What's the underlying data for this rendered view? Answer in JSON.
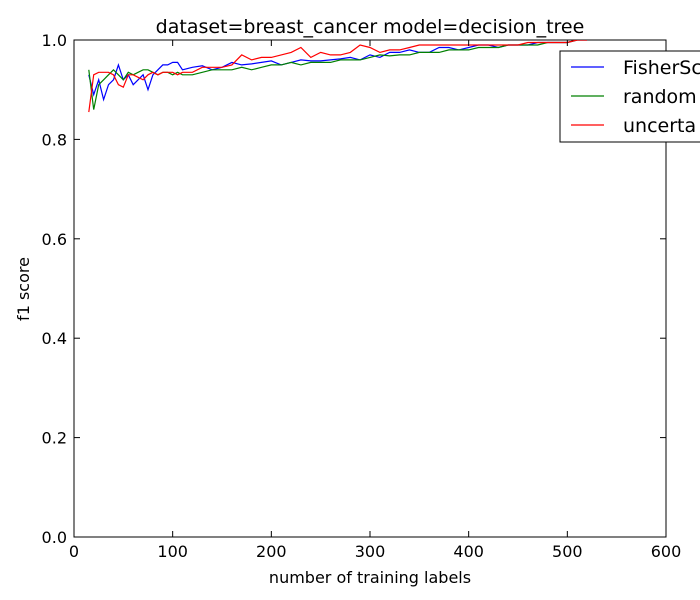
{
  "chart_data": {
    "type": "line",
    "title": "dataset=breast_cancer model=decision_tree",
    "xlabel": "number of training labels",
    "ylabel": "f1 score",
    "xlim": [
      0,
      600
    ],
    "ylim": [
      0.0,
      1.0
    ],
    "xticks": [
      "0",
      "100",
      "200",
      "300",
      "400",
      "500",
      "600"
    ],
    "yticks": [
      "0.0",
      "0.2",
      "0.4",
      "0.6",
      "0.8",
      "1.0"
    ],
    "grid": false,
    "legend_position": "top-right",
    "legend_labels": [
      "FisherSc",
      "random",
      "uncerta"
    ],
    "series": [
      {
        "name": "FisherSc",
        "color": "#0000ff",
        "x": [
          15,
          20,
          25,
          30,
          35,
          40,
          45,
          50,
          55,
          60,
          65,
          70,
          75,
          80,
          85,
          90,
          95,
          100,
          105,
          110,
          120,
          130,
          140,
          150,
          160,
          170,
          180,
          190,
          200,
          210,
          220,
          230,
          240,
          250,
          260,
          270,
          280,
          290,
          300,
          310,
          320,
          330,
          340,
          350,
          360,
          370,
          380,
          390,
          400,
          410,
          420,
          430,
          440,
          450,
          460,
          470,
          480,
          490,
          500,
          510,
          520
        ],
        "y": [
          0.93,
          0.89,
          0.92,
          0.88,
          0.91,
          0.92,
          0.95,
          0.92,
          0.93,
          0.91,
          0.92,
          0.93,
          0.9,
          0.93,
          0.94,
          0.95,
          0.95,
          0.955,
          0.955,
          0.94,
          0.945,
          0.948,
          0.94,
          0.945,
          0.955,
          0.95,
          0.952,
          0.955,
          0.958,
          0.95,
          0.955,
          0.96,
          0.958,
          0.958,
          0.96,
          0.962,
          0.965,
          0.96,
          0.97,
          0.965,
          0.975,
          0.975,
          0.98,
          0.975,
          0.975,
          0.985,
          0.985,
          0.98,
          0.985,
          0.99,
          0.99,
          0.985,
          0.99,
          0.99,
          0.99,
          0.995,
          0.995,
          0.995,
          0.995,
          1.0,
          1.0
        ]
      },
      {
        "name": "random",
        "color": "#008000",
        "x": [
          15,
          20,
          25,
          30,
          35,
          40,
          45,
          50,
          55,
          60,
          65,
          70,
          75,
          80,
          85,
          90,
          95,
          100,
          105,
          110,
          120,
          130,
          140,
          150,
          160,
          170,
          180,
          190,
          200,
          210,
          220,
          230,
          240,
          250,
          260,
          270,
          280,
          290,
          300,
          310,
          320,
          330,
          340,
          350,
          360,
          370,
          380,
          390,
          400,
          410,
          420,
          430,
          440,
          450,
          460,
          470,
          480,
          490,
          500,
          510,
          520
        ],
        "y": [
          0.94,
          0.86,
          0.91,
          0.92,
          0.93,
          0.94,
          0.93,
          0.92,
          0.935,
          0.93,
          0.935,
          0.94,
          0.94,
          0.935,
          0.93,
          0.935,
          0.935,
          0.93,
          0.935,
          0.93,
          0.93,
          0.935,
          0.94,
          0.94,
          0.94,
          0.945,
          0.94,
          0.945,
          0.95,
          0.95,
          0.955,
          0.95,
          0.955,
          0.955,
          0.955,
          0.96,
          0.96,
          0.96,
          0.965,
          0.97,
          0.968,
          0.97,
          0.97,
          0.975,
          0.975,
          0.975,
          0.98,
          0.98,
          0.98,
          0.985,
          0.985,
          0.985,
          0.99,
          0.99,
          0.99,
          0.99,
          0.995,
          0.995,
          0.995,
          1.0,
          1.0
        ]
      },
      {
        "name": "uncerta",
        "color": "#ff0000",
        "x": [
          15,
          20,
          25,
          30,
          35,
          40,
          45,
          50,
          55,
          60,
          65,
          70,
          75,
          80,
          85,
          90,
          95,
          100,
          105,
          110,
          120,
          130,
          140,
          150,
          160,
          170,
          180,
          190,
          200,
          210,
          220,
          230,
          240,
          250,
          260,
          270,
          280,
          290,
          300,
          310,
          320,
          330,
          340,
          350,
          360,
          370,
          380,
          390,
          400,
          410,
          420,
          430,
          440,
          450,
          460,
          470,
          480,
          490,
          500,
          510,
          520
        ],
        "y": [
          0.855,
          0.93,
          0.935,
          0.935,
          0.935,
          0.93,
          0.91,
          0.905,
          0.93,
          0.93,
          0.925,
          0.92,
          0.93,
          0.935,
          0.93,
          0.935,
          0.935,
          0.935,
          0.93,
          0.935,
          0.935,
          0.945,
          0.945,
          0.945,
          0.95,
          0.97,
          0.96,
          0.965,
          0.965,
          0.97,
          0.975,
          0.985,
          0.965,
          0.975,
          0.97,
          0.97,
          0.975,
          0.99,
          0.985,
          0.975,
          0.98,
          0.98,
          0.985,
          0.99,
          0.99,
          0.99,
          0.99,
          0.99,
          0.99,
          0.99,
          0.99,
          0.99,
          0.99,
          0.99,
          0.995,
          0.995,
          0.995,
          0.995,
          0.995,
          1.0,
          1.0
        ]
      }
    ]
  }
}
